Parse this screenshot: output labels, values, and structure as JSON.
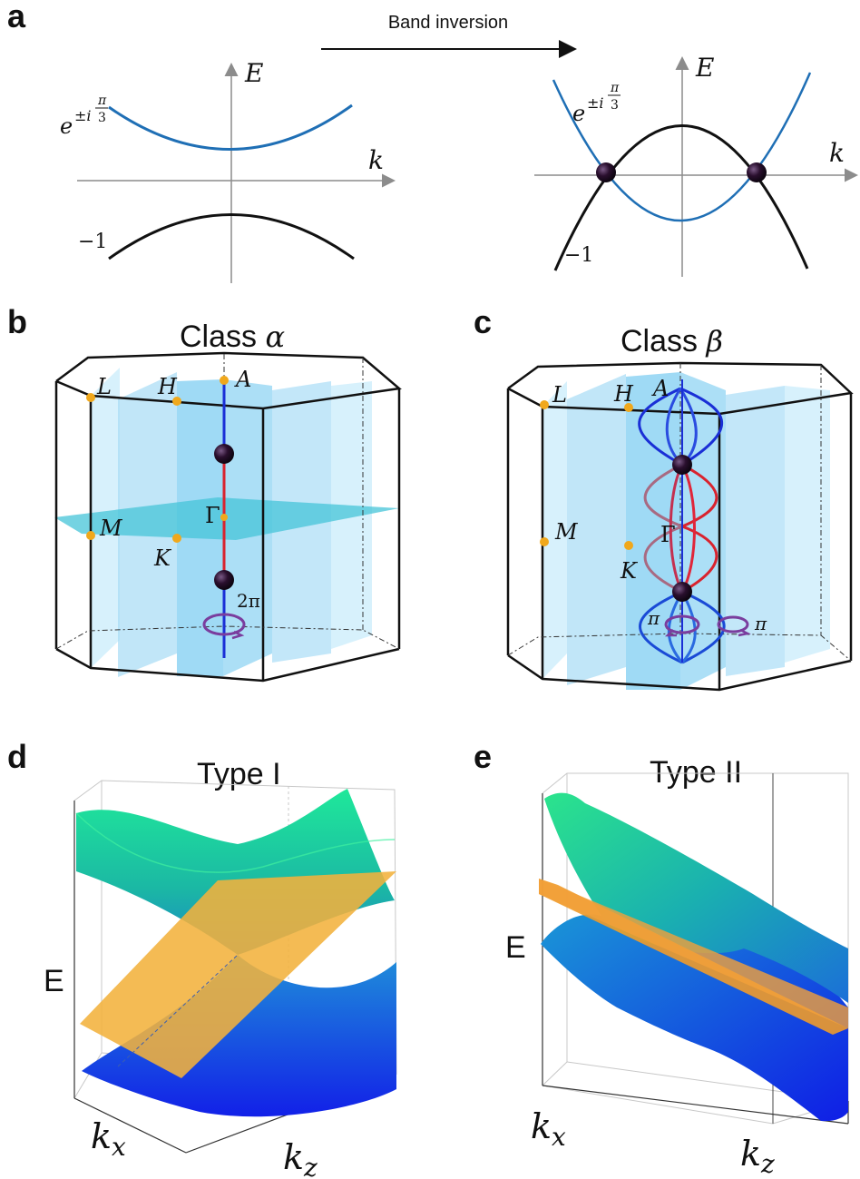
{
  "panels": {
    "a": {
      "letter": "a",
      "arrow_label": "Band inversion",
      "axis_e": "E",
      "axis_k": "k",
      "upper_band_label_base": "e",
      "upper_band_label_exp": "±i",
      "upper_band_label_num": "π",
      "upper_band_label_den": "3",
      "lower_band_label": "−1"
    },
    "b": {
      "letter": "b",
      "title_prefix": "Class ",
      "title_symbol": "α",
      "points": {
        "L": "L",
        "H": "H",
        "A": "A",
        "M": "M",
        "K": "K",
        "Gamma": "Γ"
      },
      "winding": "2π"
    },
    "c": {
      "letter": "c",
      "title_prefix": "Class ",
      "title_symbol": "β",
      "points": {
        "L": "L",
        "H": "H",
        "A": "A",
        "M": "M",
        "K": "K",
        "Gamma": "Γ"
      },
      "winding_left": "π",
      "winding_right": "π"
    },
    "d": {
      "letter": "d",
      "title": "Type I",
      "axis_e": "E",
      "axis_kx_base": "k",
      "axis_kx_sub": "x",
      "axis_kz_base": "k",
      "axis_kz_sub": "z"
    },
    "e": {
      "letter": "e",
      "title": "Type II",
      "axis_e": "E",
      "axis_kx_base": "k",
      "axis_kx_sub": "x",
      "axis_kz_base": "k",
      "axis_kz_sub": "z"
    }
  },
  "colors": {
    "blue_band": "#1f6fb5",
    "black_band": "#111111",
    "node": "#2a0f2e",
    "red_line": "#d9232e",
    "blue_line": "#1a2fd6",
    "plane": "#5cc3ef",
    "point": "#f0a81c",
    "winding": "#7a3d9e",
    "surface_green": "#2ce08c",
    "surface_blue": "#1340e0",
    "surface_orange": "#f2b23c"
  }
}
